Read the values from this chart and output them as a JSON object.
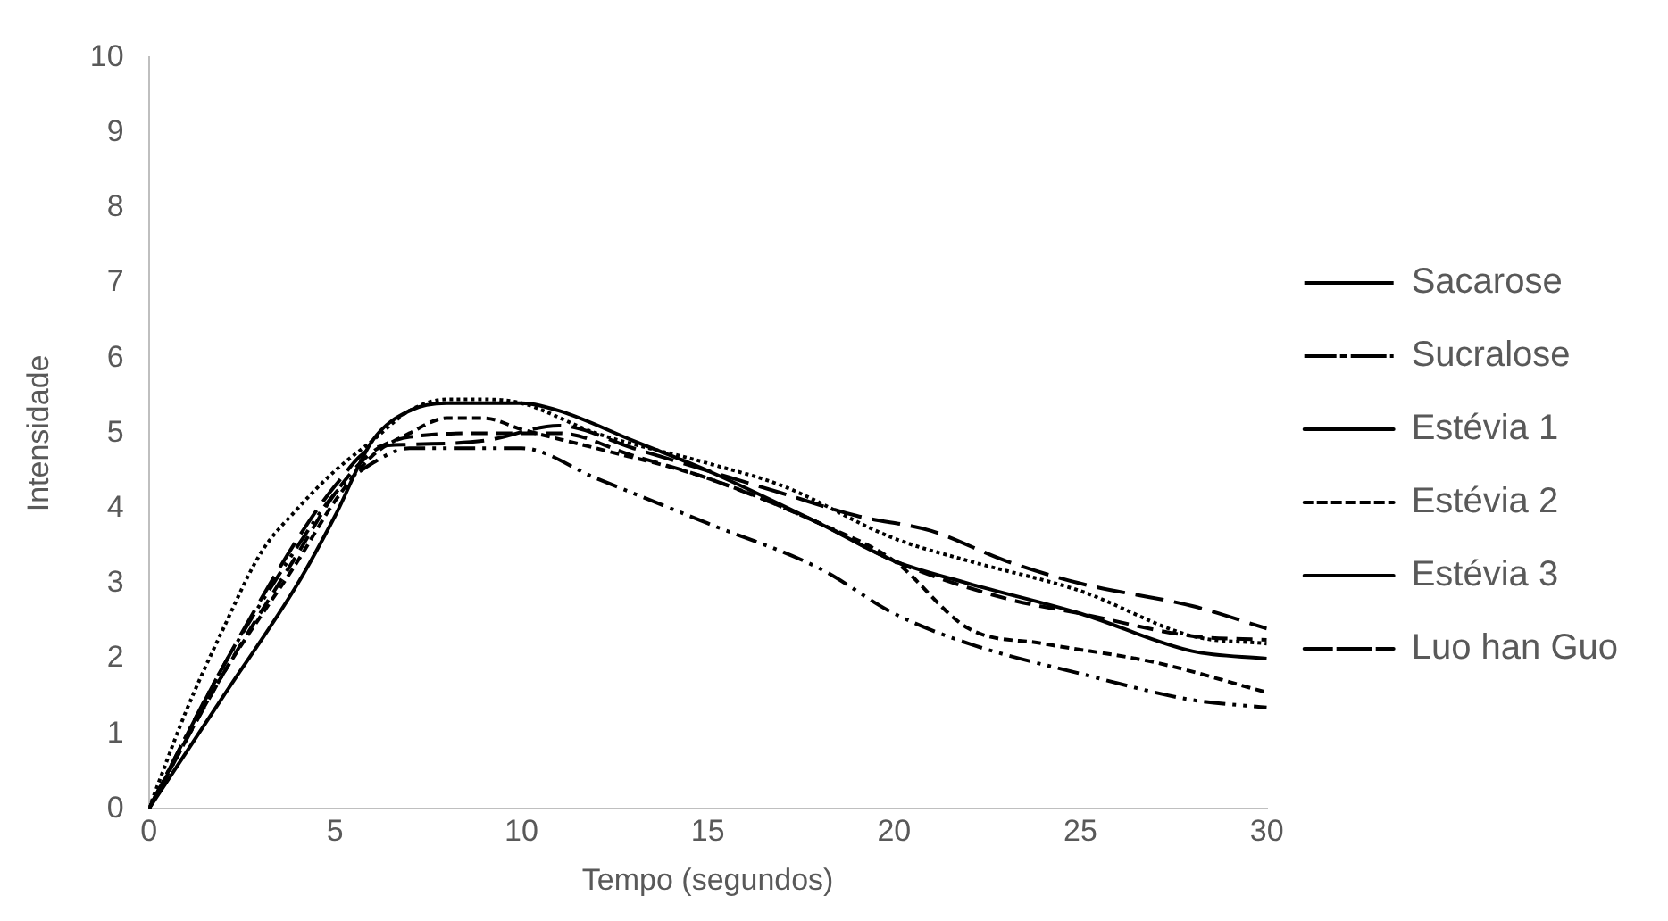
{
  "chart_data": {
    "type": "line",
    "xlabel": "Tempo (segundos)",
    "ylabel": "Intensidade",
    "xlim": [
      0,
      30
    ],
    "xticks": [
      0,
      5,
      10,
      15,
      20,
      25,
      30
    ],
    "ylim": [
      0,
      10
    ],
    "yticks": [
      0,
      1,
      2,
      3,
      4,
      5,
      6,
      7,
      8,
      9,
      10
    ],
    "grid": false,
    "legend": "right",
    "marker": "none",
    "series": [
      {
        "name": "Sacarose",
        "color": "#000000",
        "line_style": "dotted",
        "x": [
          0,
          1,
          2,
          3,
          4,
          5,
          6,
          7,
          8,
          9,
          10,
          12,
          15,
          17,
          20,
          22,
          25,
          28,
          30
        ],
        "values": [
          0,
          1.3,
          2.4,
          3.4,
          4.0,
          4.5,
          4.9,
          5.3,
          5.45,
          5.45,
          5.4,
          5.0,
          4.6,
          4.3,
          3.6,
          3.3,
          2.9,
          2.3,
          2.2
        ]
      },
      {
        "name": "Sucralose",
        "color": "#000000",
        "line_style": "dashed",
        "x": [
          0,
          2,
          4,
          5,
          6,
          7,
          10,
          12,
          15,
          18,
          20,
          22,
          25,
          28,
          30
        ],
        "values": [
          0,
          1.9,
          3.5,
          4.2,
          4.6,
          4.8,
          4.8,
          4.4,
          3.8,
          3.2,
          2.6,
          2.2,
          1.8,
          1.45,
          1.35
        ]
      },
      {
        "name": "Estévia 1",
        "color": "#000000",
        "line_style": "solid",
        "x": [
          0,
          2,
          4,
          5,
          6,
          7,
          8,
          10,
          11,
          13,
          15,
          18,
          20,
          22,
          25,
          28,
          30
        ],
        "values": [
          0,
          1.5,
          3.0,
          3.9,
          4.9,
          5.3,
          5.4,
          5.4,
          5.3,
          4.9,
          4.5,
          3.8,
          3.3,
          3.0,
          2.6,
          2.1,
          2.0
        ]
      },
      {
        "name": "Estévia 2",
        "color": "#000000",
        "line_style": "dashed",
        "x": [
          0,
          2,
          4,
          5,
          6,
          7,
          8,
          9,
          10,
          12,
          15,
          18,
          20,
          22,
          24,
          27,
          30
        ],
        "values": [
          0,
          1.8,
          3.3,
          4.1,
          4.7,
          5.0,
          5.2,
          5.2,
          5.05,
          4.8,
          4.4,
          3.8,
          3.3,
          2.4,
          2.2,
          1.95,
          1.55
        ]
      },
      {
        "name": "Estévia 3",
        "color": "#000000",
        "line_style": "dashed",
        "x": [
          0,
          2,
          4,
          5,
          6,
          7,
          9,
          11,
          13,
          15,
          18,
          20,
          23,
          25,
          28,
          30
        ],
        "values": [
          0,
          1.8,
          3.4,
          4.2,
          4.75,
          4.95,
          5.0,
          5.0,
          4.7,
          4.4,
          3.8,
          3.3,
          2.8,
          2.6,
          2.3,
          2.25
        ]
      },
      {
        "name": "Luo han Guo",
        "color": "#000000",
        "line_style": "dashed",
        "x": [
          0,
          2,
          4,
          5,
          6,
          7,
          9,
          11,
          13,
          15,
          17,
          19,
          21,
          23,
          25,
          28,
          30
        ],
        "values": [
          0,
          1.9,
          3.6,
          4.3,
          4.8,
          4.85,
          4.9,
          5.1,
          4.8,
          4.5,
          4.2,
          3.9,
          3.7,
          3.3,
          3.0,
          2.7,
          2.4
        ]
      }
    ]
  }
}
